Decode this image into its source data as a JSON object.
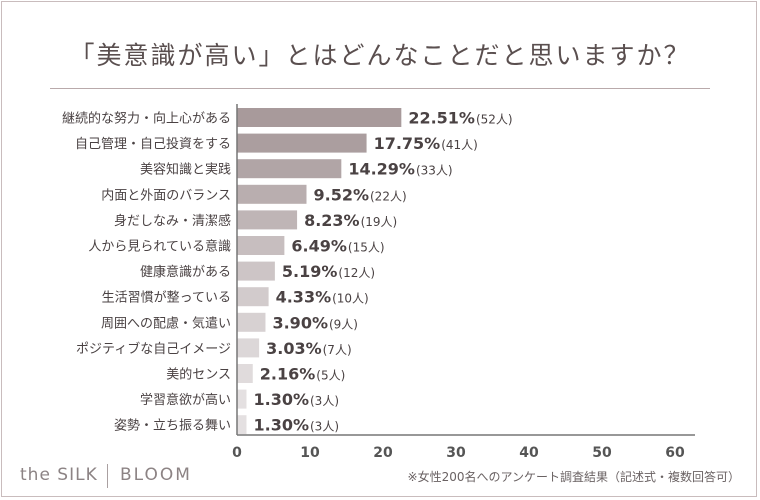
{
  "title": "「美意識が高い」とはどんなことだと思いますか？",
  "brand": {
    "name": "the SILK",
    "name2": "BLOOM"
  },
  "note": "※女性200名へのアンケート調査結果（記述式・複数回答可）",
  "chart_data": {
    "type": "bar",
    "orientation": "horizontal",
    "categories": [
      "継続的な努力・向上心がある",
      "自己管理・自己投資をする",
      "美容知識と実践",
      "内面と外面のバランス",
      "身だしなみ・清潔感",
      "人から見られている意識",
      "健康意識がある",
      "生活習慣が整っている",
      "周囲への配慮・気遣い",
      "ポジティブな自己イメージ",
      "美的センス",
      "学習意欲が高い",
      "姿勢・立ち振る舞い"
    ],
    "values": [
      22.51,
      17.75,
      14.29,
      9.52,
      8.23,
      6.49,
      5.19,
      4.33,
      3.9,
      3.03,
      2.16,
      1.3,
      1.3
    ],
    "value_labels": [
      "22.51%",
      "17.75%",
      "14.29%",
      "9.52%",
      "8.23%",
      "6.49%",
      "5.19%",
      "4.33%",
      "3.90%",
      "3.03%",
      "2.16%",
      "1.30%",
      "1.30%"
    ],
    "count_labels": [
      "(52人)",
      "(41人)",
      "(33人)",
      "(22人)",
      "(19人)",
      "(15人)",
      "(12人)",
      "(10人)",
      "(9人)",
      "(7人)",
      "(5人)",
      "(3人)",
      "(3人)"
    ],
    "xlim": [
      0,
      60
    ],
    "xticks": [
      "0",
      "10",
      "20",
      "30",
      "40",
      "50",
      "60"
    ],
    "bar_colors": [
      "#a89a9b",
      "#ab9e9f",
      "#b1a5a6",
      "#b9aeaf",
      "#bfb5b6",
      "#c7bebf",
      "#cdc5c6",
      "#d2cbcc",
      "#d7d1d2",
      "#dcd7d8",
      "#e0dbdc",
      "#e4e0e1",
      "#e4e0e1"
    ],
    "grid": false
  }
}
